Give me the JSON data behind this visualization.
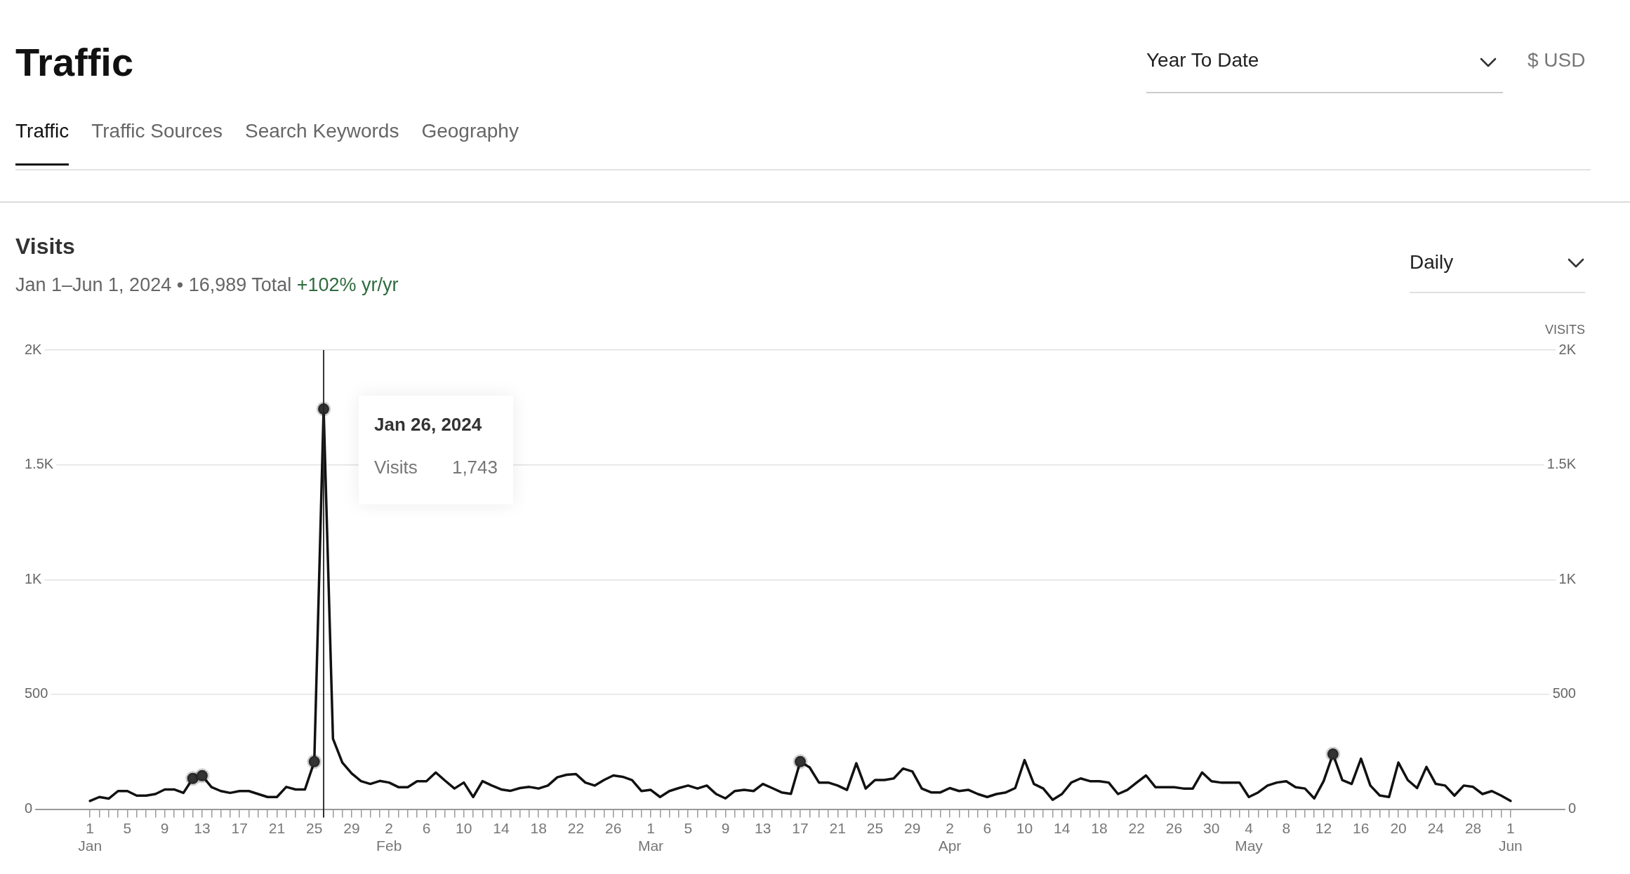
{
  "chart_data": {
    "type": "line",
    "title": "Visits",
    "subtitle": "Jan 1–Jun 1, 2024 • 16,989 Total",
    "y2label": "VISITS",
    "annotations": [
      "Traffic",
      "Year To Date",
      "$ USD",
      "Traffic",
      "Traffic Sources",
      "Search Keywords",
      "Geography",
      "Daily",
      "+102% yr/yr",
      "Visits",
      "Jan 26, 2024",
      "1,743"
    ],
    "x": [
      "2024-01-01",
      "2024-01-02",
      "2024-01-03",
      "2024-01-04",
      "2024-01-05",
      "2024-01-06",
      "2024-01-07",
      "2024-01-08",
      "2024-01-09",
      "2024-01-10",
      "2024-01-11",
      "2024-01-12",
      "2024-01-13",
      "2024-01-14",
      "2024-01-15",
      "2024-01-16",
      "2024-01-17",
      "2024-01-18",
      "2024-01-19",
      "2024-01-20",
      "2024-01-21",
      "2024-01-22",
      "2024-01-23",
      "2024-01-24",
      "2024-01-25",
      "2024-01-26",
      "2024-01-27",
      "2024-01-28",
      "2024-01-29",
      "2024-01-30",
      "2024-01-31",
      "2024-02-01",
      "2024-02-02",
      "2024-02-03",
      "2024-02-04",
      "2024-02-05",
      "2024-02-06",
      "2024-02-07",
      "2024-02-08",
      "2024-02-09",
      "2024-02-10",
      "2024-02-11",
      "2024-02-12",
      "2024-02-13",
      "2024-02-14",
      "2024-02-15",
      "2024-02-16",
      "2024-02-17",
      "2024-02-18",
      "2024-02-19",
      "2024-02-20",
      "2024-02-21",
      "2024-02-22",
      "2024-02-23",
      "2024-02-24",
      "2024-02-25",
      "2024-02-26",
      "2024-02-27",
      "2024-02-28",
      "2024-02-29",
      "2024-03-01",
      "2024-03-02",
      "2024-03-03",
      "2024-03-04",
      "2024-03-05",
      "2024-03-06",
      "2024-03-07",
      "2024-03-08",
      "2024-03-09",
      "2024-03-10",
      "2024-03-11",
      "2024-03-12",
      "2024-03-13",
      "2024-03-14",
      "2024-03-15",
      "2024-03-16",
      "2024-03-17",
      "2024-03-18",
      "2024-03-19",
      "2024-03-20",
      "2024-03-21",
      "2024-03-22",
      "2024-03-23",
      "2024-03-24",
      "2024-03-25",
      "2024-03-26",
      "2024-03-27",
      "2024-03-28",
      "2024-03-29",
      "2024-03-30",
      "2024-03-31",
      "2024-04-01",
      "2024-04-02",
      "2024-04-03",
      "2024-04-04",
      "2024-04-05",
      "2024-04-06",
      "2024-04-07",
      "2024-04-08",
      "2024-04-09",
      "2024-04-10",
      "2024-04-11",
      "2024-04-12",
      "2024-04-13",
      "2024-04-14",
      "2024-04-15",
      "2024-04-16",
      "2024-04-17",
      "2024-04-18",
      "2024-04-19",
      "2024-04-20",
      "2024-04-21",
      "2024-04-22",
      "2024-04-23",
      "2024-04-24",
      "2024-04-25",
      "2024-04-26",
      "2024-04-27",
      "2024-04-28",
      "2024-04-29",
      "2024-04-30",
      "2024-05-01",
      "2024-05-02",
      "2024-05-03",
      "2024-05-04",
      "2024-05-05",
      "2024-05-06",
      "2024-05-07",
      "2024-05-08",
      "2024-05-09",
      "2024-05-10",
      "2024-05-11",
      "2024-05-12",
      "2024-05-13",
      "2024-05-14",
      "2024-05-15",
      "2024-05-16",
      "2024-05-17",
      "2024-05-18",
      "2024-05-19",
      "2024-05-20",
      "2024-05-21",
      "2024-05-22",
      "2024-05-23",
      "2024-05-24",
      "2024-05-25",
      "2024-05-26",
      "2024-05-27",
      "2024-05-28",
      "2024-05-29",
      "2024-05-30",
      "2024-05-31",
      "2024-06-01"
    ],
    "series": [
      {
        "type": "line",
        "color": "#111111",
        "values": [
          36,
          53,
          46,
          79,
          79,
          59,
          59,
          66,
          86,
          86,
          71,
          134,
          146,
          96,
          79,
          71,
          79,
          79,
          66,
          53,
          53,
          97,
          86,
          86,
          207,
          1743,
          307,
          203,
          156,
          122,
          110,
          123,
          116,
          96,
          96,
          122,
          122,
          160,
          124,
          90,
          116,
          53,
          122,
          103,
          86,
          80,
          92,
          97,
          90,
          103,
          139,
          150,
          153,
          116,
          103,
          127,
          147,
          141,
          127,
          79,
          84,
          53,
          79,
          92,
          103,
          90,
          103,
          66,
          47,
          79,
          84,
          79,
          110,
          92,
          73,
          67,
          207,
          182,
          116,
          116,
          103,
          84,
          200,
          90,
          127,
          127,
          134,
          177,
          164,
          90,
          73,
          73,
          92,
          79,
          84,
          66,
          53,
          66,
          73,
          92,
          214,
          110,
          90,
          41,
          66,
          116,
          134,
          122,
          122,
          116,
          66,
          84,
          116,
          147,
          96,
          96,
          96,
          90,
          90,
          160,
          122,
          116,
          116,
          116,
          53,
          73,
          103,
          116,
          122,
          96,
          90,
          47,
          122,
          240,
          127,
          110,
          220,
          103,
          60,
          53,
          203,
          127,
          92,
          184,
          110,
          103,
          59,
          103,
          97,
          66,
          79,
          59,
          36
        ]
      },
      {
        "type": "scatter",
        "color": "#333333",
        "x": [
          "2024-01-12",
          "2024-01-13",
          "2024-01-25",
          "2024-01-26",
          "2024-03-17",
          "2024-05-13"
        ],
        "values": [
          134,
          146,
          207,
          1743,
          207,
          240
        ]
      }
    ],
    "ref_lines": [
      {
        "axis": "x",
        "value": "2024-01-26",
        "color": "#222222"
      }
    ],
    "xlim": [
      "2023-12-25",
      "2024-06-08"
    ],
    "xticks": [
      {
        "value": "2024-01-01",
        "label": "1\nJan"
      },
      {
        "value": "2024-01-02",
        "label": null
      },
      {
        "value": "2024-01-03",
        "label": null
      },
      {
        "value": "2024-01-04",
        "label": null
      },
      {
        "value": "2024-01-05",
        "label": "5"
      },
      {
        "value": "2024-01-06",
        "label": null
      },
      {
        "value": "2024-01-07",
        "label": null
      },
      {
        "value": "2024-01-08",
        "label": null
      },
      {
        "value": "2024-01-09",
        "label": "9"
      },
      {
        "value": "2024-01-10",
        "label": null
      },
      {
        "value": "2024-01-11",
        "label": null
      },
      {
        "value": "2024-01-12",
        "label": null
      },
      {
        "value": "2024-01-13",
        "label": "13"
      },
      {
        "value": "2024-01-14",
        "label": null
      },
      {
        "value": "2024-01-15",
        "label": null
      },
      {
        "value": "2024-01-16",
        "label": null
      },
      {
        "value": "2024-01-17",
        "label": "17"
      },
      {
        "value": "2024-01-18",
        "label": null
      },
      {
        "value": "2024-01-19",
        "label": null
      },
      {
        "value": "2024-01-20",
        "label": null
      },
      {
        "value": "2024-01-21",
        "label": "21"
      },
      {
        "value": "2024-01-22",
        "label": null
      },
      {
        "value": "2024-01-23",
        "label": null
      },
      {
        "value": "2024-01-24",
        "label": null
      },
      {
        "value": "2024-01-25",
        "label": "25"
      },
      {
        "value": "2024-01-26",
        "label": null
      },
      {
        "value": "2024-01-27",
        "label": null
      },
      {
        "value": "2024-01-28",
        "label": null
      },
      {
        "value": "2024-01-29",
        "label": "29"
      },
      {
        "value": "2024-01-30",
        "label": null
      },
      {
        "value": "2024-01-31",
        "label": null
      },
      {
        "value": "2024-02-01",
        "label": null
      },
      {
        "value": "2024-02-02",
        "label": "2\nFeb"
      },
      {
        "value": "2024-02-03",
        "label": null
      },
      {
        "value": "2024-02-04",
        "label": null
      },
      {
        "value": "2024-02-05",
        "label": null
      },
      {
        "value": "2024-02-06",
        "label": "6"
      },
      {
        "value": "2024-02-07",
        "label": null
      },
      {
        "value": "2024-02-08",
        "label": null
      },
      {
        "value": "2024-02-09",
        "label": null
      },
      {
        "value": "2024-02-10",
        "label": "10"
      },
      {
        "value": "2024-02-11",
        "label": null
      },
      {
        "value": "2024-02-12",
        "label": null
      },
      {
        "value": "2024-02-13",
        "label": null
      },
      {
        "value": "2024-02-14",
        "label": "14"
      },
      {
        "value": "2024-02-15",
        "label": null
      },
      {
        "value": "2024-02-16",
        "label": null
      },
      {
        "value": "2024-02-17",
        "label": null
      },
      {
        "value": "2024-02-18",
        "label": "18"
      },
      {
        "value": "2024-02-19",
        "label": null
      },
      {
        "value": "2024-02-20",
        "label": null
      },
      {
        "value": "2024-02-21",
        "label": null
      },
      {
        "value": "2024-02-22",
        "label": "22"
      },
      {
        "value": "2024-02-23",
        "label": null
      },
      {
        "value": "2024-02-24",
        "label": null
      },
      {
        "value": "2024-02-25",
        "label": null
      },
      {
        "value": "2024-02-26",
        "label": "26"
      },
      {
        "value": "2024-02-27",
        "label": null
      },
      {
        "value": "2024-02-28",
        "label": null
      },
      {
        "value": "2024-02-29",
        "label": null
      },
      {
        "value": "2024-03-01",
        "label": "1\nMar"
      },
      {
        "value": "2024-03-02",
        "label": null
      },
      {
        "value": "2024-03-03",
        "label": null
      },
      {
        "value": "2024-03-04",
        "label": null
      },
      {
        "value": "2024-03-05",
        "label": "5"
      },
      {
        "value": "2024-03-06",
        "label": null
      },
      {
        "value": "2024-03-07",
        "label": null
      },
      {
        "value": "2024-03-08",
        "label": null
      },
      {
        "value": "2024-03-09",
        "label": "9"
      },
      {
        "value": "2024-03-10",
        "label": null
      },
      {
        "value": "2024-03-11",
        "label": null
      },
      {
        "value": "2024-03-12",
        "label": null
      },
      {
        "value": "2024-03-13",
        "label": "13"
      },
      {
        "value": "2024-03-14",
        "label": null
      },
      {
        "value": "2024-03-15",
        "label": null
      },
      {
        "value": "2024-03-16",
        "label": null
      },
      {
        "value": "2024-03-17",
        "label": "17"
      },
      {
        "value": "2024-03-18",
        "label": null
      },
      {
        "value": "2024-03-19",
        "label": null
      },
      {
        "value": "2024-03-20",
        "label": null
      },
      {
        "value": "2024-03-21",
        "label": "21"
      },
      {
        "value": "2024-03-22",
        "label": null
      },
      {
        "value": "2024-03-23",
        "label": null
      },
      {
        "value": "2024-03-24",
        "label": null
      },
      {
        "value": "2024-03-25",
        "label": "25"
      },
      {
        "value": "2024-03-26",
        "label": null
      },
      {
        "value": "2024-03-27",
        "label": null
      },
      {
        "value": "2024-03-28",
        "label": null
      },
      {
        "value": "2024-03-29",
        "label": "29"
      },
      {
        "value": "2024-03-30",
        "label": null
      },
      {
        "value": "2024-03-31",
        "label": null
      },
      {
        "value": "2024-04-01",
        "label": null
      },
      {
        "value": "2024-04-02",
        "label": "2\nApr"
      },
      {
        "value": "2024-04-03",
        "label": null
      },
      {
        "value": "2024-04-04",
        "label": null
      },
      {
        "value": "2024-04-05",
        "label": null
      },
      {
        "value": "2024-04-06",
        "label": "6"
      },
      {
        "value": "2024-04-07",
        "label": null
      },
      {
        "value": "2024-04-08",
        "label": null
      },
      {
        "value": "2024-04-09",
        "label": null
      },
      {
        "value": "2024-04-10",
        "label": "10"
      },
      {
        "value": "2024-04-11",
        "label": null
      },
      {
        "value": "2024-04-12",
        "label": null
      },
      {
        "value": "2024-04-13",
        "label": null
      },
      {
        "value": "2024-04-14",
        "label": "14"
      },
      {
        "value": "2024-04-15",
        "label": null
      },
      {
        "value": "2024-04-16",
        "label": null
      },
      {
        "value": "2024-04-17",
        "label": null
      },
      {
        "value": "2024-04-18",
        "label": "18"
      },
      {
        "value": "2024-04-19",
        "label": null
      },
      {
        "value": "2024-04-20",
        "label": null
      },
      {
        "value": "2024-04-21",
        "label": null
      },
      {
        "value": "2024-04-22",
        "label": "22"
      },
      {
        "value": "2024-04-23",
        "label": null
      },
      {
        "value": "2024-04-24",
        "label": null
      },
      {
        "value": "2024-04-25",
        "label": null
      },
      {
        "value": "2024-04-26",
        "label": "26"
      },
      {
        "value": "2024-04-27",
        "label": null
      },
      {
        "value": "2024-04-28",
        "label": null
      },
      {
        "value": "2024-04-29",
        "label": null
      },
      {
        "value": "2024-04-30",
        "label": "30"
      },
      {
        "value": "2024-05-01",
        "label": null
      },
      {
        "value": "2024-05-02",
        "label": null
      },
      {
        "value": "2024-05-03",
        "label": null
      },
      {
        "value": "2024-05-04",
        "label": "4\nMay"
      },
      {
        "value": "2024-05-05",
        "label": null
      },
      {
        "value": "2024-05-06",
        "label": null
      },
      {
        "value": "2024-05-07",
        "label": null
      },
      {
        "value": "2024-05-08",
        "label": "8"
      },
      {
        "value": "2024-05-09",
        "label": null
      },
      {
        "value": "2024-05-10",
        "label": null
      },
      {
        "value": "2024-05-11",
        "label": null
      },
      {
        "value": "2024-05-12",
        "label": "12"
      },
      {
        "value": "2024-05-13",
        "label": null
      },
      {
        "value": "2024-05-14",
        "label": null
      },
      {
        "value": "2024-05-15",
        "label": null
      },
      {
        "value": "2024-05-16",
        "label": "16"
      },
      {
        "value": "2024-05-17",
        "label": null
      },
      {
        "value": "2024-05-18",
        "label": null
      },
      {
        "value": "2024-05-19",
        "label": null
      },
      {
        "value": "2024-05-20",
        "label": "20"
      },
      {
        "value": "2024-05-21",
        "label": null
      },
      {
        "value": "2024-05-22",
        "label": null
      },
      {
        "value": "2024-05-23",
        "label": null
      },
      {
        "value": "2024-05-24",
        "label": "24"
      },
      {
        "value": "2024-05-25",
        "label": null
      },
      {
        "value": "2024-05-26",
        "label": null
      },
      {
        "value": "2024-05-27",
        "label": null
      },
      {
        "value": "2024-05-28",
        "label": "28"
      },
      {
        "value": "2024-05-29",
        "label": null
      },
      {
        "value": "2024-05-30",
        "label": null
      },
      {
        "value": "2024-05-31",
        "label": null
      },
      {
        "value": "2024-06-01",
        "label": "1\nJun"
      }
    ],
    "ylim": [
      0,
      2000
    ],
    "yticks": [
      0,
      500,
      {
        "value": 1000,
        "label": "1K"
      },
      {
        "value": 1500,
        "label": "1.5K"
      },
      {
        "value": 2000,
        "label": "2K"
      }
    ],
    "y2lim": [
      0,
      2000
    ],
    "y2ticks": [
      0,
      500,
      {
        "value": 1000,
        "label": "1K"
      },
      {
        "value": 1500,
        "label": "1.5K"
      },
      {
        "value": 2000,
        "label": "2K"
      }
    ],
    "grid": "y",
    "legend": false
  }
}
